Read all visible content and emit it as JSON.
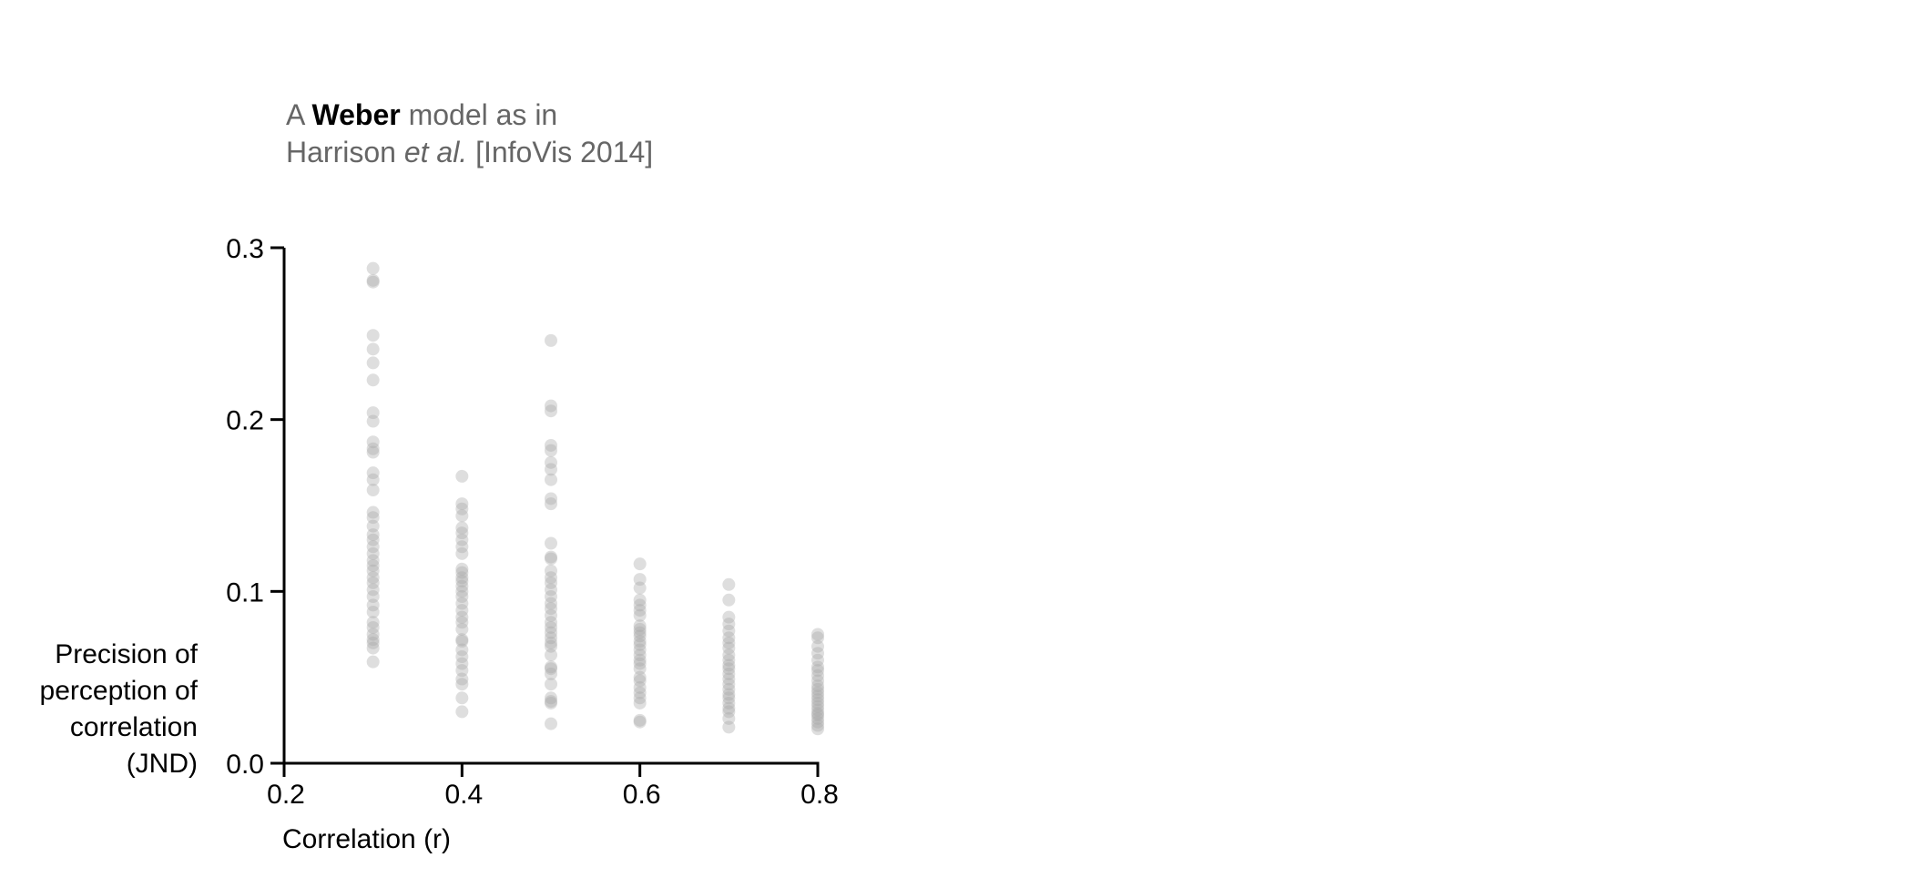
{
  "chart_data": {
    "type": "scatter",
    "title_parts": [
      {
        "text": "A ",
        "style": "normal"
      },
      {
        "text": "Weber",
        "style": "bold"
      },
      {
        "text": " model as in",
        "style": "normal"
      },
      {
        "text": "Harrison ",
        "style": "normal",
        "newline": true
      },
      {
        "text": "et al.",
        "style": "italic"
      },
      {
        "text": " [InfoVis 2014]",
        "style": "normal"
      }
    ],
    "xlabel": "Correlation (r)",
    "ylabel_lines": [
      "Precision of",
      "perception of",
      "correlation",
      "(JND)"
    ],
    "xlim": [
      0.2,
      0.8
    ],
    "ylim": [
      0.0,
      0.3
    ],
    "xticks": [
      "0.2",
      "0.4",
      "0.6",
      "0.8"
    ],
    "yticks": [
      "0.0",
      "0.1",
      "0.2",
      "0.3"
    ],
    "grid": false,
    "point_color": "#a8a8a8",
    "axis_color": "#000000",
    "series": [
      {
        "x": 0.3,
        "values": [
          0.288,
          0.281,
          0.28,
          0.249,
          0.241,
          0.233,
          0.223,
          0.204,
          0.199,
          0.187,
          0.183,
          0.181,
          0.169,
          0.165,
          0.159,
          0.146,
          0.143,
          0.138,
          0.133,
          0.13,
          0.126,
          0.122,
          0.118,
          0.115,
          0.112,
          0.108,
          0.105,
          0.101,
          0.097,
          0.092,
          0.088,
          0.082,
          0.079,
          0.075,
          0.072,
          0.07,
          0.067,
          0.059
        ]
      },
      {
        "x": 0.4,
        "values": [
          0.167,
          0.151,
          0.148,
          0.144,
          0.137,
          0.134,
          0.13,
          0.126,
          0.122,
          0.113,
          0.111,
          0.108,
          0.106,
          0.103,
          0.1,
          0.097,
          0.093,
          0.089,
          0.085,
          0.082,
          0.078,
          0.072,
          0.071,
          0.066,
          0.062,
          0.058,
          0.054,
          0.049,
          0.046,
          0.038,
          0.03
        ]
      },
      {
        "x": 0.5,
        "values": [
          0.246,
          0.208,
          0.205,
          0.185,
          0.182,
          0.175,
          0.171,
          0.165,
          0.154,
          0.151,
          0.128,
          0.12,
          0.119,
          0.112,
          0.108,
          0.105,
          0.101,
          0.097,
          0.093,
          0.09,
          0.086,
          0.082,
          0.079,
          0.076,
          0.073,
          0.07,
          0.068,
          0.063,
          0.056,
          0.055,
          0.052,
          0.046,
          0.038,
          0.036,
          0.035,
          0.023
        ]
      },
      {
        "x": 0.6,
        "values": [
          0.116,
          0.107,
          0.102,
          0.095,
          0.092,
          0.089,
          0.086,
          0.08,
          0.078,
          0.076,
          0.074,
          0.071,
          0.069,
          0.066,
          0.063,
          0.06,
          0.058,
          0.055,
          0.05,
          0.048,
          0.044,
          0.041,
          0.038,
          0.035,
          0.025,
          0.024
        ]
      },
      {
        "x": 0.7,
        "values": [
          0.104,
          0.095,
          0.085,
          0.081,
          0.077,
          0.073,
          0.07,
          0.067,
          0.063,
          0.06,
          0.057,
          0.055,
          0.052,
          0.049,
          0.046,
          0.043,
          0.04,
          0.038,
          0.035,
          0.032,
          0.03,
          0.026,
          0.021
        ]
      },
      {
        "x": 0.8,
        "values": [
          0.075,
          0.073,
          0.068,
          0.064,
          0.06,
          0.056,
          0.054,
          0.051,
          0.048,
          0.045,
          0.043,
          0.041,
          0.039,
          0.037,
          0.035,
          0.033,
          0.031,
          0.029,
          0.028,
          0.026,
          0.024,
          0.022,
          0.02
        ]
      }
    ]
  }
}
